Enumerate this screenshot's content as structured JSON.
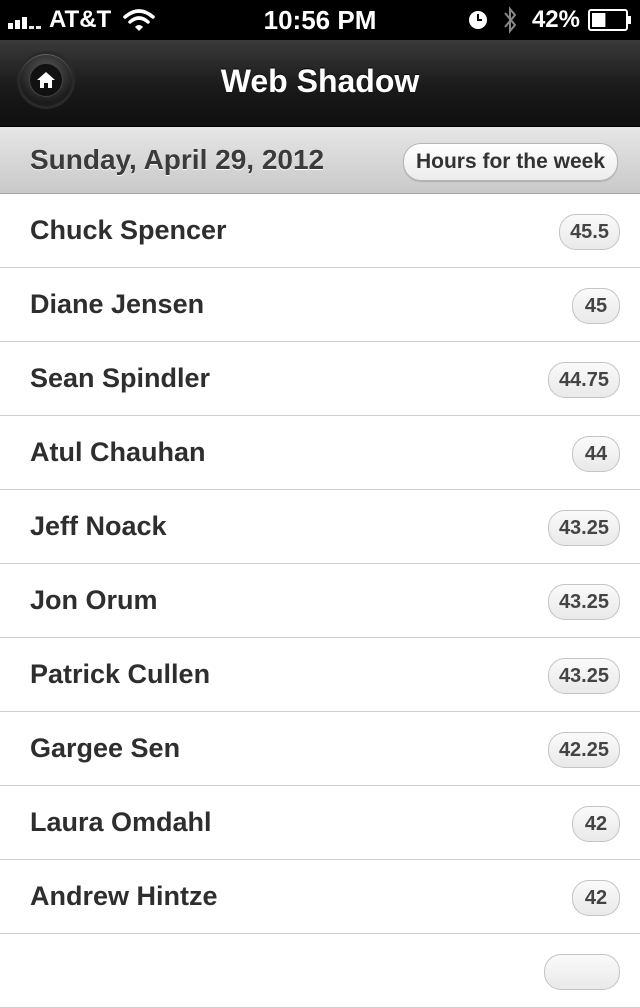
{
  "status_bar": {
    "carrier": "AT&T",
    "time": "10:56 PM",
    "battery_percent": "42%",
    "battery_level": 0.42,
    "icons": [
      "signal-icon",
      "wifi-icon",
      "clock-icon",
      "bluetooth-icon",
      "battery-icon"
    ]
  },
  "nav": {
    "title": "Web Shadow",
    "home_icon": "home-icon"
  },
  "sub_header": {
    "date": "Sunday, April 29, 2012",
    "hours_button": "Hours for the week"
  },
  "employees": [
    {
      "name": "Chuck Spencer",
      "hours": "45.5"
    },
    {
      "name": "Diane Jensen",
      "hours": "45"
    },
    {
      "name": "Sean Spindler",
      "hours": "44.75"
    },
    {
      "name": "Atul Chauhan",
      "hours": "44"
    },
    {
      "name": "Jeff Noack",
      "hours": "43.25"
    },
    {
      "name": "Jon Orum",
      "hours": "43.25"
    },
    {
      "name": "Patrick Cullen",
      "hours": "43.25"
    },
    {
      "name": "Gargee Sen",
      "hours": "42.25"
    },
    {
      "name": "Laura Omdahl",
      "hours": "42"
    },
    {
      "name": "Andrew Hintze",
      "hours": "42"
    },
    {
      "name": "",
      "hours": ""
    }
  ]
}
